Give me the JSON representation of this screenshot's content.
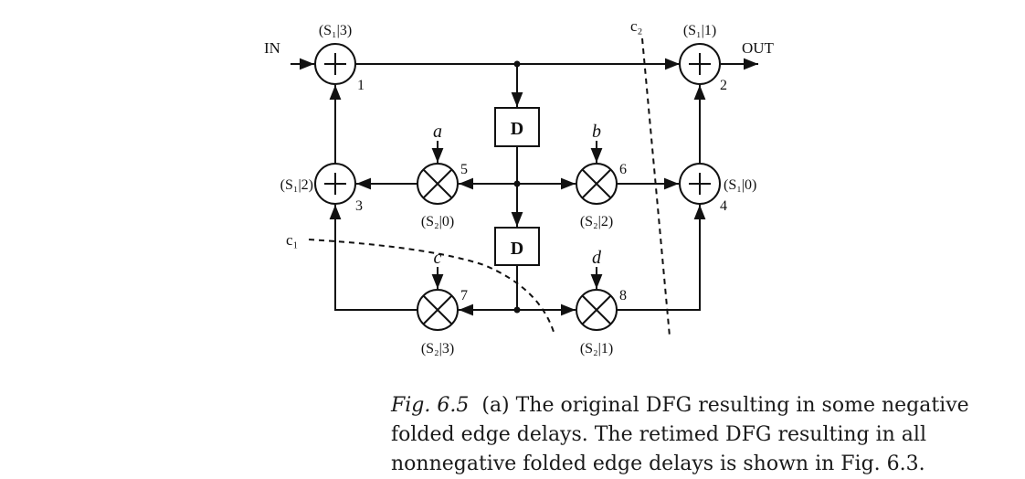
{
  "diagram": {
    "io": {
      "in": "IN",
      "out": "OUT"
    },
    "nodes": [
      {
        "id": "1",
        "op": "+",
        "label": "(S₁|3)"
      },
      {
        "id": "2",
        "op": "+",
        "label": "(S₁|1)"
      },
      {
        "id": "3",
        "op": "+",
        "label": "(S₁|2)"
      },
      {
        "id": "4",
        "op": "+",
        "label": "(S₁|0)"
      },
      {
        "id": "5",
        "op": "×",
        "label": "(S₂|0)",
        "coef": "a"
      },
      {
        "id": "6",
        "op": "×",
        "label": "(S₂|2)",
        "coef": "b"
      },
      {
        "id": "7",
        "op": "×",
        "label": "(S₂|3)",
        "coef": "c"
      },
      {
        "id": "8",
        "op": "×",
        "label": "(S₂|1)",
        "coef": "d"
      }
    ],
    "delays": [
      "D",
      "D"
    ],
    "cutsets": {
      "c1": "c₁",
      "c2": "c₂"
    }
  },
  "caption": {
    "figure_number": "Fig. 6.5",
    "text": "(a) The original DFG resulting in some negative folded edge delays. The retimed DFG resulting in all nonnegative folded edge delays is shown in Fig. 6.3."
  }
}
